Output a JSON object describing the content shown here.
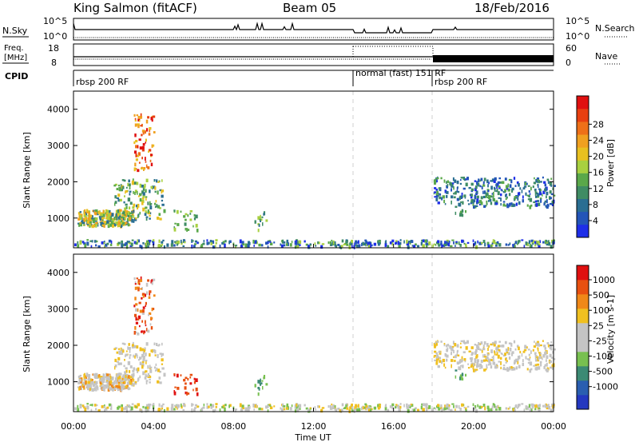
{
  "header": {
    "station": "King Salmon (fitACF)",
    "beam": "Beam 05",
    "date": "18/Feb/2016"
  },
  "panels": {
    "nsky": {
      "label": "N.Sky",
      "ticks_left": [
        "10^5",
        "10^0"
      ],
      "right_label": "N.Search",
      "ticks_right": [
        "10^5",
        "10^0"
      ]
    },
    "freq": {
      "label_line1": "Freq.",
      "label_line2": "[MHz]",
      "ticks_left": [
        "18",
        "8"
      ],
      "right_label": "Nave",
      "ticks_right": [
        "60",
        "0"
      ]
    },
    "cpid": {
      "label": "CPID",
      "segments": [
        "rbsp 200 RF",
        "normal (fast) 151 RF",
        "rbsp 200 RF"
      ]
    }
  },
  "chart_data": [
    {
      "type": "heatmap",
      "title": "",
      "xlabel": "",
      "ylabel": "Slant Range [km]",
      "xlim": [
        0,
        24
      ],
      "ylim": [
        180,
        4500
      ],
      "yticks": [
        "1000",
        "2000",
        "3000",
        "4000"
      ],
      "colorbar": {
        "label": "Power [dB]",
        "ticks": [
          "4",
          "8",
          "12",
          "16",
          "20",
          "24",
          "28"
        ],
        "colors": [
          "#1e2ee8",
          "#2355b8",
          "#2a6e92",
          "#3f8c64",
          "#5aa84a",
          "#a8d040",
          "#e8c020",
          "#f0a020",
          "#ee7018",
          "#e84010",
          "#e01010"
        ]
      }
    },
    {
      "type": "heatmap",
      "title": "",
      "xlabel": "Time UT",
      "ylabel": "Slant Range [km]",
      "xlim": [
        0,
        24
      ],
      "ylim": [
        180,
        4500
      ],
      "yticks": [
        "1000",
        "2000",
        "3000",
        "4000"
      ],
      "xticks": [
        "00:00",
        "04:00",
        "08:00",
        "12:00",
        "16:00",
        "20:00",
        "00:00"
      ],
      "colorbar": {
        "label": "Velocity [m s-1]",
        "ticks": [
          "1000",
          "500",
          "100",
          "25",
          "-25",
          "-100",
          "-500",
          "-1000"
        ],
        "colors": [
          "#2438c0",
          "#2a5eb0",
          "#3c8a74",
          "#78c050",
          "#c4c4c4",
          "#c4c4c4",
          "#f0c020",
          "#f08818",
          "#e85010",
          "#e01010"
        ]
      }
    }
  ]
}
